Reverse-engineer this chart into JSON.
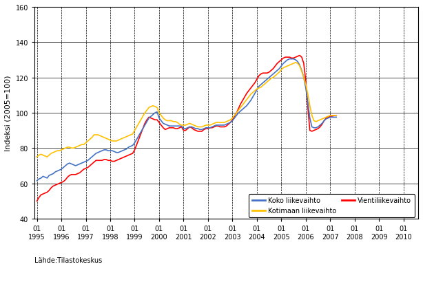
{
  "ylabel": "Indeksi (2005=100)",
  "source": "Lähde:Tilastokeskus",
  "ylim": [
    40,
    160
  ],
  "yticks": [
    40,
    60,
    80,
    100,
    120,
    140,
    160
  ],
  "line_colors": {
    "koko": "#4472c4",
    "kotimaan": "#ffc000",
    "vienti": "#ff0000"
  },
  "legend_labels": {
    "koko": "Koko liikevaihto",
    "kotimaan": "Kotimaan liikevaihto",
    "vienti": "Vientiliikevaihto"
  },
  "koko_liikevaihto": [
    61.5,
    62.5,
    63.0,
    64.0,
    63.5,
    63.0,
    64.5,
    65.0,
    65.5,
    66.5,
    67.0,
    67.5,
    68.0,
    69.0,
    70.0,
    71.0,
    71.5,
    71.0,
    70.5,
    70.0,
    70.5,
    71.0,
    71.5,
    72.0,
    72.5,
    73.0,
    74.0,
    75.0,
    76.0,
    77.0,
    77.5,
    78.0,
    78.5,
    79.0,
    79.0,
    78.5,
    78.5,
    78.5,
    78.0,
    77.5,
    77.5,
    78.0,
    78.5,
    79.0,
    79.5,
    80.5,
    81.0,
    81.5,
    83.0,
    85.0,
    87.0,
    89.0,
    91.0,
    93.0,
    95.0,
    97.0,
    98.0,
    99.0,
    100.0,
    100.5,
    97.0,
    95.5,
    94.0,
    93.5,
    93.0,
    92.5,
    92.5,
    92.5,
    92.5,
    92.5,
    92.5,
    92.5,
    91.0,
    91.0,
    91.5,
    92.0,
    92.0,
    91.5,
    91.0,
    91.0,
    90.5,
    90.5,
    91.0,
    91.5,
    91.5,
    91.5,
    92.0,
    92.5,
    93.0,
    93.0,
    93.0,
    93.0,
    93.0,
    93.5,
    94.0,
    94.5,
    95.5,
    97.0,
    98.5,
    100.0,
    101.0,
    102.0,
    103.0,
    104.0,
    105.5,
    107.0,
    109.0,
    111.0,
    113.0,
    115.0,
    116.0,
    117.0,
    118.0,
    119.0,
    120.0,
    121.0,
    122.0,
    123.0,
    124.0,
    125.0,
    126.5,
    128.0,
    129.0,
    130.0,
    130.5,
    130.5,
    130.5,
    130.0,
    129.0,
    127.0,
    124.0,
    120.0,
    114.0,
    106.0,
    97.0,
    92.0,
    91.5,
    91.5,
    92.0,
    93.0,
    94.0,
    95.5,
    96.5,
    97.0,
    97.5,
    97.5,
    97.5,
    97.5
  ],
  "kotimaan_liikevaihto": [
    75.0,
    76.0,
    76.5,
    76.0,
    75.5,
    75.0,
    76.0,
    77.0,
    77.5,
    78.0,
    78.5,
    78.5,
    79.0,
    79.5,
    80.0,
    80.5,
    80.5,
    80.0,
    80.0,
    80.5,
    81.0,
    81.5,
    82.0,
    82.0,
    83.0,
    84.0,
    85.0,
    86.0,
    87.5,
    87.5,
    87.5,
    87.0,
    86.5,
    86.0,
    85.5,
    85.0,
    84.5,
    84.0,
    84.0,
    84.0,
    84.5,
    85.0,
    85.5,
    86.0,
    86.5,
    87.0,
    87.5,
    88.0,
    90.0,
    92.0,
    94.0,
    96.0,
    98.0,
    100.0,
    101.5,
    103.0,
    103.5,
    104.0,
    103.5,
    103.0,
    100.0,
    98.5,
    97.0,
    96.0,
    95.5,
    95.5,
    95.5,
    95.0,
    95.0,
    94.5,
    93.5,
    93.0,
    93.0,
    93.0,
    93.5,
    94.0,
    93.5,
    93.0,
    92.5,
    92.0,
    92.0,
    92.0,
    92.5,
    93.0,
    93.0,
    93.0,
    93.5,
    94.0,
    94.5,
    94.5,
    94.5,
    94.5,
    94.5,
    95.0,
    95.5,
    96.0,
    97.0,
    98.5,
    100.0,
    101.5,
    103.0,
    104.5,
    106.0,
    107.5,
    109.0,
    110.5,
    111.5,
    112.5,
    113.5,
    114.0,
    114.5,
    115.5,
    116.5,
    117.5,
    118.5,
    119.5,
    120.0,
    121.0,
    122.0,
    123.0,
    124.5,
    125.5,
    126.0,
    126.5,
    127.0,
    127.5,
    128.0,
    128.5,
    128.0,
    126.5,
    123.5,
    120.0,
    116.0,
    110.5,
    104.0,
    98.5,
    95.5,
    95.0,
    95.5,
    96.0,
    96.5,
    97.0,
    97.5,
    98.0,
    98.5,
    98.5,
    98.5,
    98.5
  ],
  "vienti_liikevaihto": [
    50.0,
    52.0,
    53.5,
    54.0,
    54.5,
    55.0,
    56.0,
    57.5,
    58.5,
    59.0,
    59.5,
    60.0,
    60.5,
    61.0,
    62.0,
    63.5,
    64.5,
    65.0,
    65.0,
    65.0,
    65.5,
    66.0,
    67.0,
    68.0,
    68.5,
    69.0,
    70.0,
    71.0,
    72.0,
    73.0,
    73.0,
    73.0,
    73.0,
    73.5,
    73.5,
    73.0,
    73.0,
    72.5,
    72.5,
    73.0,
    73.5,
    74.0,
    74.5,
    75.0,
    75.5,
    76.0,
    76.5,
    77.0,
    79.0,
    82.0,
    85.0,
    88.0,
    91.0,
    94.0,
    96.0,
    97.5,
    97.0,
    96.5,
    96.0,
    96.0,
    94.5,
    93.0,
    91.5,
    90.5,
    91.0,
    91.5,
    91.5,
    91.5,
    91.0,
    91.0,
    91.5,
    92.0,
    90.0,
    90.0,
    91.0,
    92.0,
    91.5,
    90.5,
    90.0,
    89.5,
    89.5,
    89.5,
    90.5,
    91.0,
    91.0,
    91.5,
    91.5,
    92.0,
    92.5,
    92.5,
    92.0,
    92.0,
    92.0,
    92.5,
    93.5,
    94.5,
    96.0,
    98.0,
    100.0,
    102.5,
    105.0,
    107.0,
    109.0,
    111.0,
    112.5,
    114.0,
    115.5,
    117.0,
    119.0,
    121.0,
    122.0,
    122.5,
    122.5,
    122.5,
    123.0,
    124.0,
    125.0,
    126.5,
    128.0,
    129.0,
    130.0,
    131.0,
    131.5,
    131.5,
    131.5,
    131.0,
    131.0,
    131.5,
    132.0,
    132.5,
    131.5,
    128.0,
    118.0,
    103.0,
    90.0,
    89.5,
    90.0,
    90.5,
    91.0,
    92.0,
    93.5,
    95.5,
    97.0,
    97.5,
    98.0,
    98.0,
    98.5,
    98.5
  ],
  "start_year": 1995,
  "start_month": 1,
  "x_tick_years": [
    1995,
    1996,
    1997,
    1998,
    1999,
    2000,
    2001,
    2002,
    2003,
    2004,
    2005,
    2006,
    2007,
    2008,
    2009,
    2010
  ],
  "xlim_start": 1994.9,
  "xlim_end": 2010.6
}
